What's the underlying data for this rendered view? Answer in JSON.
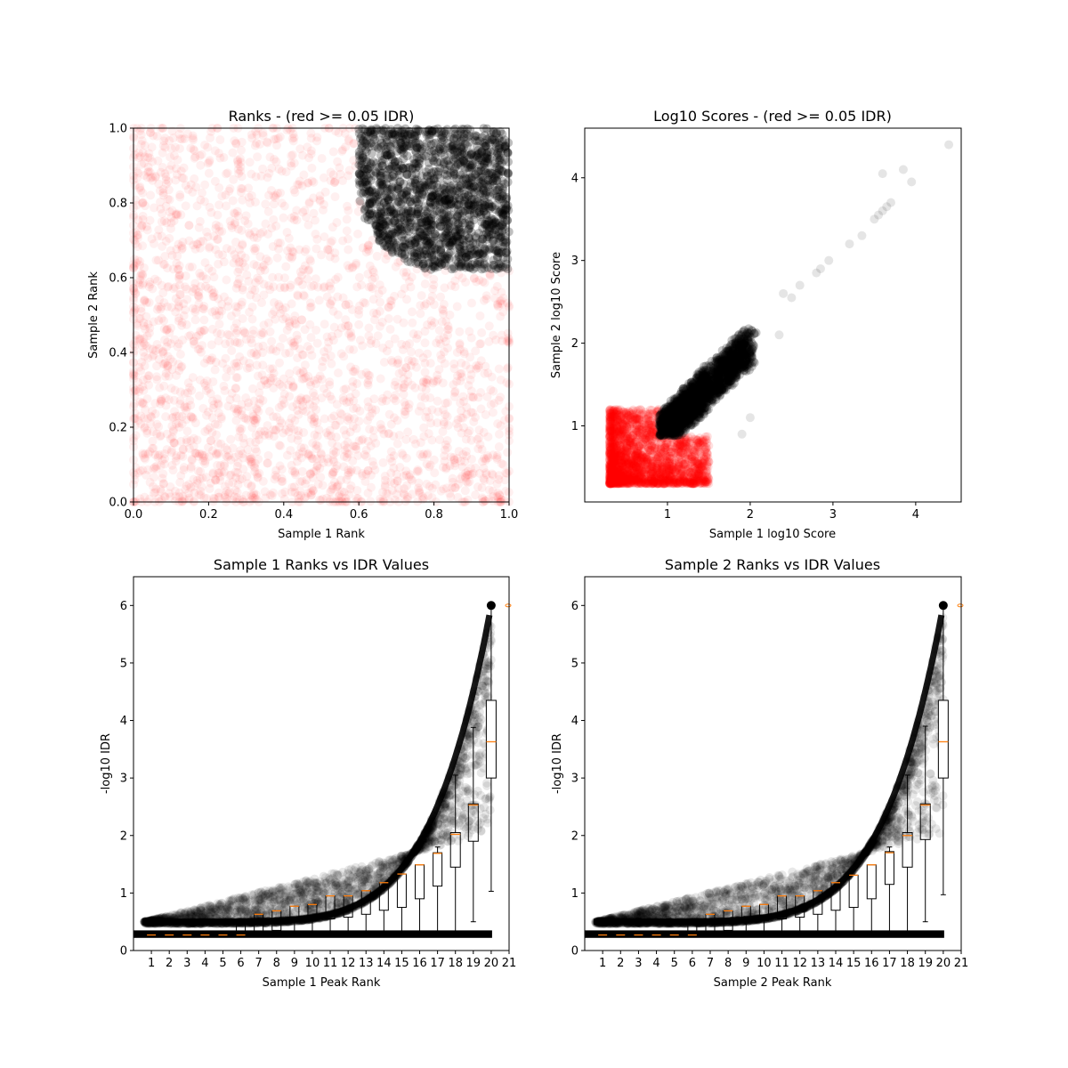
{
  "chart_data": [
    {
      "type": "scatter",
      "title": "Ranks - (red >= 0.05 IDR)",
      "xlabel": "Sample 1 Rank",
      "ylabel": "Sample 2 Rank",
      "xlim": [
        0,
        1
      ],
      "ylim": [
        0,
        1
      ],
      "xticks": [
        "0.0",
        "0.2",
        "0.4",
        "0.6",
        "0.8",
        "1.0"
      ],
      "yticks": [
        "0.0",
        "0.2",
        "0.4",
        "0.6",
        "0.8",
        "1.0"
      ],
      "grid": false,
      "series": [
        {
          "color": "#ff0000",
          "region": {
            "x_min": 0,
            "x_max": 1,
            "y_min": 0,
            "y_max": 1
          },
          "alpha": 0.06
        },
        {
          "color": "#000000",
          "region": {
            "corner": [
              1,
              1
            ],
            "threshold_x": 0.6,
            "threshold_y": 0.62,
            "curve_radius": 0.22
          },
          "alpha": 0.1
        }
      ]
    },
    {
      "type": "scatter",
      "title": "Log10 Scores - (red >= 0.05 IDR)",
      "xlabel": "Sample 1 log10 Score",
      "ylabel": "Sample 2 log10 Score",
      "xlim": [
        0.0,
        4.55
      ],
      "ylim": [
        0.08,
        4.6
      ],
      "xticks": [
        "1",
        "2",
        "3",
        "4"
      ],
      "yticks": [
        "1",
        "2",
        "3",
        "4"
      ],
      "grid": false,
      "series": [
        {
          "color": "#ff0000",
          "region": {
            "x_min": 0.3,
            "x_max": 1.5,
            "y_min": 0.3,
            "y_max": 1.2
          },
          "alpha": 0.08
        },
        {
          "color": "#000000",
          "region": {
            "x_min": 0.9,
            "x_max": 2.0,
            "y_min": 0.88,
            "y_max": 2.0
          },
          "alpha": 0.1,
          "outliers": [
            [
              2.35,
              2.1
            ],
            [
              2.4,
              2.6
            ],
            [
              2.5,
              2.55
            ],
            [
              2.6,
              2.7
            ],
            [
              2.8,
              2.85
            ],
            [
              2.85,
              2.9
            ],
            [
              2.95,
              3.0
            ],
            [
              3.2,
              3.2
            ],
            [
              3.35,
              3.3
            ],
            [
              3.5,
              3.5
            ],
            [
              3.55,
              3.55
            ],
            [
              3.6,
              3.6
            ],
            [
              3.65,
              3.65
            ],
            [
              3.7,
              3.7
            ],
            [
              3.6,
              4.05
            ],
            [
              3.85,
              4.1
            ],
            [
              3.95,
              3.95
            ],
            [
              4.4,
              4.4
            ],
            [
              2.0,
              1.1
            ],
            [
              1.9,
              0.9
            ]
          ]
        }
      ]
    },
    {
      "type": "box",
      "title": "Sample 1 Ranks vs IDR Values",
      "xlabel": "Sample 1 Peak Rank",
      "ylabel": "-log10 IDR",
      "xlim": [
        0,
        21
      ],
      "ylim": [
        0,
        6.5
      ],
      "xticks": [
        "1",
        "2",
        "3",
        "4",
        "5",
        "6",
        "7",
        "8",
        "9",
        "10",
        "11",
        "12",
        "13",
        "14",
        "15",
        "16",
        "17",
        "18",
        "19",
        "20",
        "21"
      ],
      "yticks": [
        "0",
        "1",
        "2",
        "3",
        "4",
        "5",
        "6"
      ],
      "medians": [
        0.27,
        0.27,
        0.27,
        0.27,
        0.27,
        0.27,
        0.63,
        0.69,
        0.77,
        0.8,
        0.95,
        0.95,
        1.04,
        1.18,
        1.33,
        1.49,
        1.69,
        2.02,
        2.53,
        3.63
      ],
      "box_q1": [
        0.27,
        0.27,
        0.27,
        0.27,
        0.27,
        0.27,
        0.3,
        0.35,
        0.52,
        0.52,
        0.55,
        0.58,
        0.63,
        0.7,
        0.75,
        0.9,
        1.12,
        1.45,
        1.9,
        3.0
      ],
      "box_q3": [
        0.27,
        0.27,
        0.27,
        0.27,
        0.27,
        0.45,
        0.63,
        0.69,
        0.77,
        0.8,
        0.95,
        0.95,
        1.04,
        1.18,
        1.33,
        1.49,
        1.7,
        2.05,
        2.55,
        4.35
      ],
      "whisker_low": [
        0.27,
        0.27,
        0.27,
        0.27,
        0.27,
        0.27,
        0.27,
        0.27,
        0.27,
        0.27,
        0.27,
        0.27,
        0.27,
        0.27,
        0.27,
        0.27,
        0.27,
        0.27,
        0.5,
        1.03
      ],
      "whisker_high": [
        0.27,
        0.27,
        0.27,
        0.27,
        0.27,
        0.55,
        0.63,
        0.69,
        0.77,
        0.8,
        0.95,
        0.95,
        1.04,
        1.18,
        1.33,
        1.49,
        1.8,
        3.05,
        3.88,
        6.0
      ],
      "scatter_color": "#000000",
      "cloud": {
        "lower_band": [
          0.22,
          0.35
        ],
        "upper_curve_start": 0.5,
        "upper_curve_end": 6.0,
        "plateau": 0.5
      }
    },
    {
      "type": "box",
      "title": "Sample 2 Ranks vs IDR Values",
      "xlabel": "Sample 2 Peak Rank",
      "ylabel": "-log10 IDR",
      "xlim": [
        0,
        21
      ],
      "ylim": [
        0,
        6.5
      ],
      "xticks": [
        "1",
        "2",
        "3",
        "4",
        "5",
        "6",
        "7",
        "8",
        "9",
        "10",
        "11",
        "12",
        "13",
        "14",
        "15",
        "16",
        "17",
        "18",
        "19",
        "20",
        "21"
      ],
      "yticks": [
        "0",
        "1",
        "2",
        "3",
        "4",
        "5",
        "6"
      ],
      "medians": [
        0.27,
        0.27,
        0.27,
        0.27,
        0.27,
        0.27,
        0.63,
        0.69,
        0.77,
        0.8,
        0.95,
        0.95,
        1.04,
        1.18,
        1.31,
        1.49,
        1.7,
        2.0,
        2.53,
        3.63
      ],
      "box_q1": [
        0.27,
        0.27,
        0.27,
        0.27,
        0.27,
        0.27,
        0.3,
        0.35,
        0.52,
        0.52,
        0.55,
        0.58,
        0.63,
        0.7,
        0.75,
        0.9,
        1.15,
        1.45,
        1.93,
        3.0
      ],
      "box_q3": [
        0.27,
        0.27,
        0.27,
        0.27,
        0.27,
        0.45,
        0.63,
        0.69,
        0.77,
        0.8,
        0.95,
        0.95,
        1.04,
        1.18,
        1.31,
        1.49,
        1.72,
        2.05,
        2.55,
        4.35
      ],
      "whisker_low": [
        0.27,
        0.27,
        0.27,
        0.27,
        0.27,
        0.27,
        0.27,
        0.27,
        0.27,
        0.27,
        0.27,
        0.27,
        0.27,
        0.27,
        0.27,
        0.27,
        0.27,
        0.27,
        0.5,
        0.97
      ],
      "whisker_high": [
        0.27,
        0.27,
        0.27,
        0.27,
        0.27,
        0.55,
        0.63,
        0.69,
        0.77,
        0.8,
        0.95,
        0.95,
        1.04,
        1.18,
        1.31,
        1.49,
        1.8,
        3.05,
        3.9,
        6.0
      ],
      "scatter_color": "#000000",
      "cloud": {
        "lower_band": [
          0.22,
          0.35
        ],
        "upper_curve_start": 0.5,
        "upper_curve_end": 6.0,
        "plateau": 0.5
      }
    }
  ],
  "colors": {
    "pass": "#000000",
    "fail": "#ff0000",
    "median": "#ff7f0e"
  }
}
